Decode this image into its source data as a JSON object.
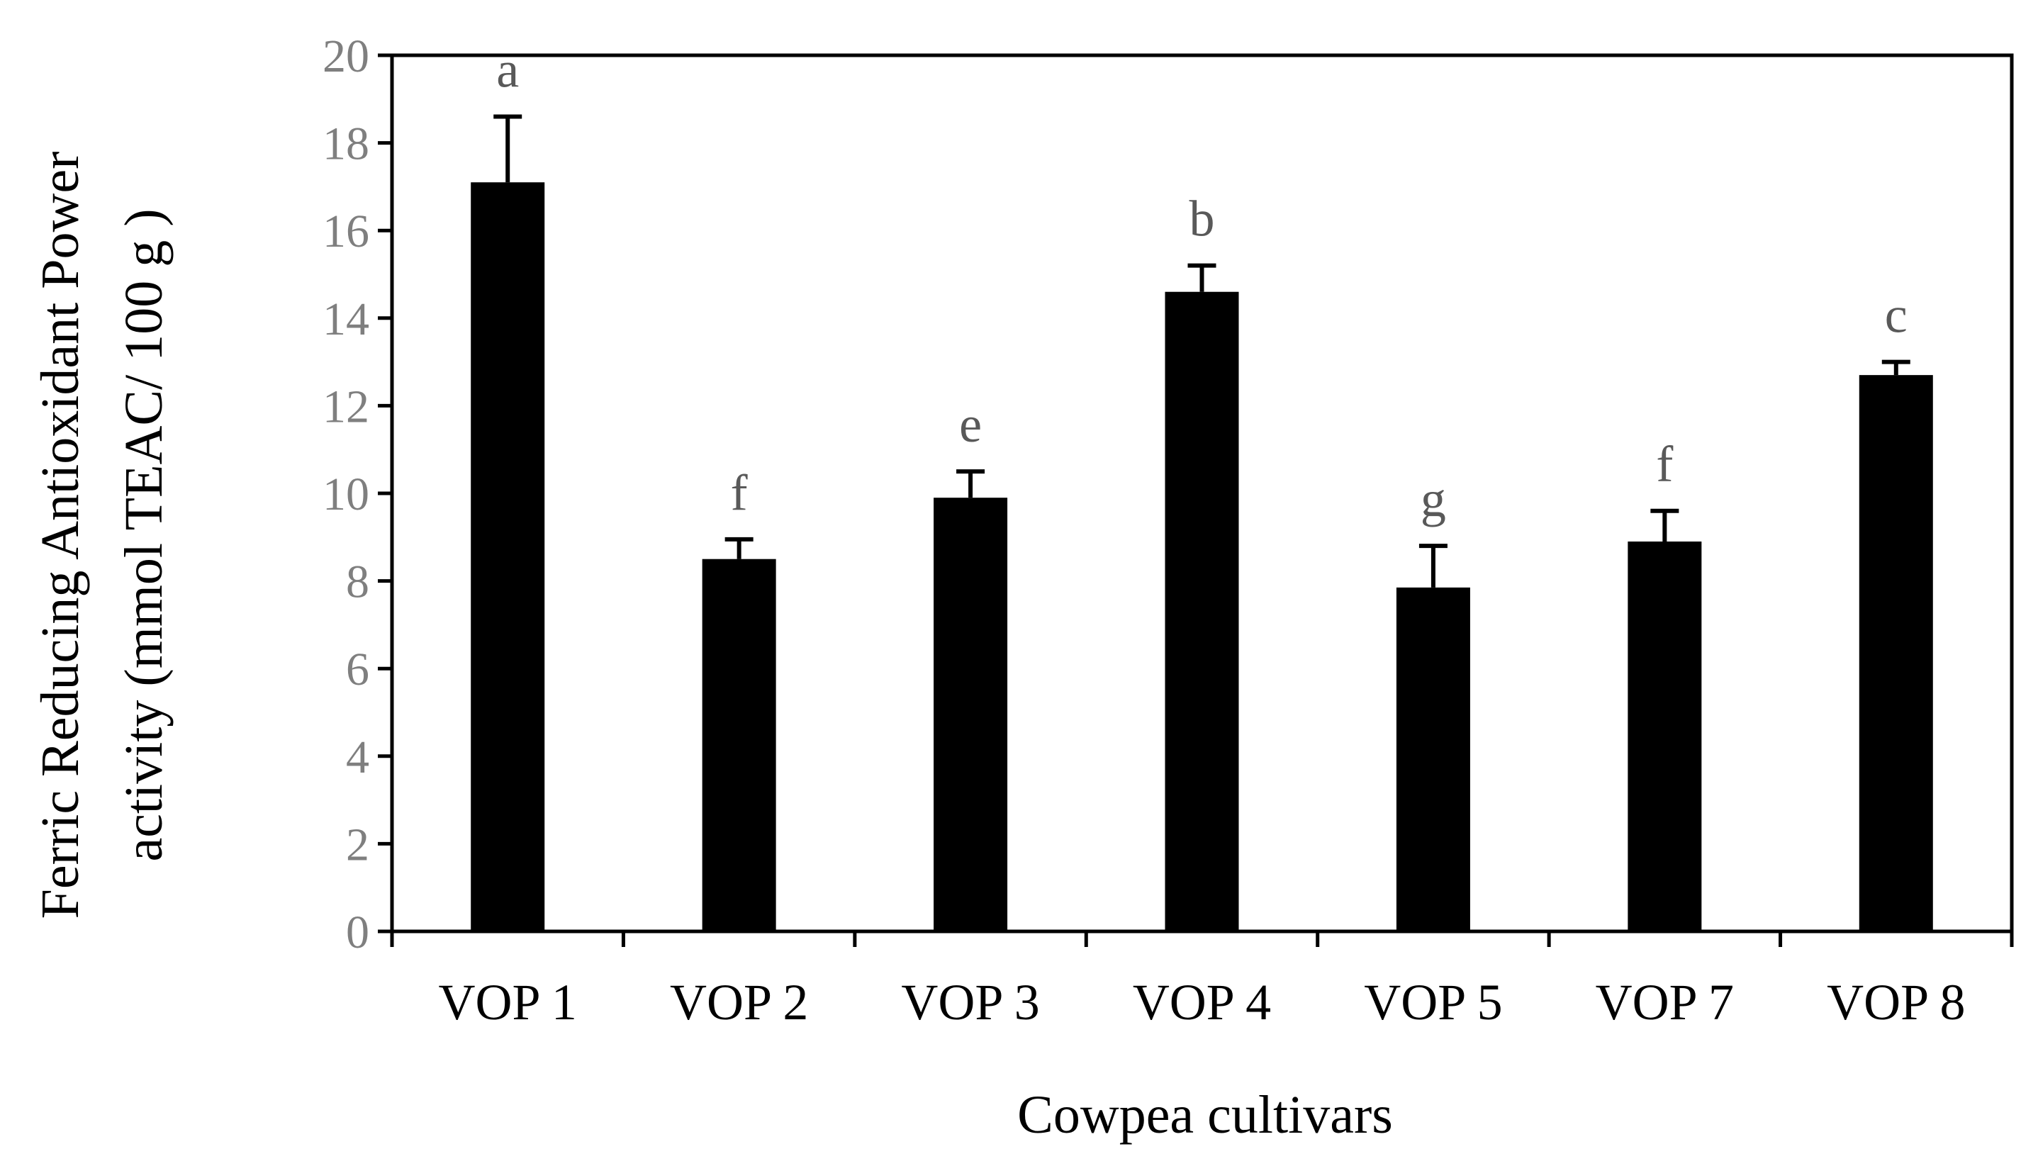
{
  "chart_data": {
    "type": "bar",
    "title": "",
    "xlabel": "Cowpea cultivars",
    "ylabel_lines": [
      "Ferric Reducing Antioxidant Power",
      "activity  (mmol TEAC/ 100 g )"
    ],
    "categories": [
      "VOP 1",
      "VOP 2",
      "VOP 3",
      "VOP 4",
      "VOP 5",
      "VOP 7",
      "VOP 8"
    ],
    "values": [
      17.1,
      8.5,
      9.9,
      14.6,
      7.85,
      8.9,
      12.7
    ],
    "errors": [
      1.5,
      0.45,
      0.6,
      0.6,
      0.95,
      0.7,
      0.3
    ],
    "significance_labels": [
      "a",
      "f",
      "e",
      "b",
      "g",
      "f",
      "c"
    ],
    "ylim": [
      0,
      20
    ],
    "yticks": [
      0,
      2,
      4,
      6,
      8,
      10,
      12,
      14,
      16,
      18,
      20
    ],
    "grid": false,
    "legend": "none",
    "colors": {
      "bar": "#000000",
      "axis": "#000000",
      "ytick_label": "#7f7f7f",
      "significance_label": "#595959"
    }
  }
}
